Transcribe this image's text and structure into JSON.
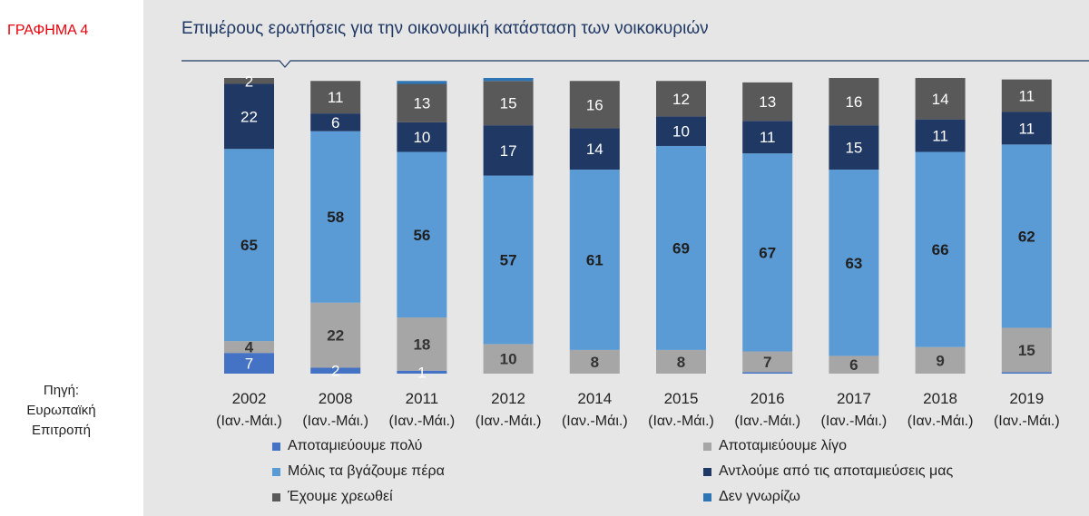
{
  "figure_label": "ΓΡΑΦΗΜΑ 4",
  "source_note": [
    "Πηγή:",
    "Ευρωπαϊκή",
    "Επιτροπή"
  ],
  "chart_data": {
    "type": "bar",
    "stacked": true,
    "title": "Επιμέρους ερωτήσεις για την οικονομική κατάσταση των νοικοκυριών",
    "categories": [
      "2002",
      "2008",
      "2011",
      "2012",
      "2014",
      "2015",
      "2016",
      "2017",
      "2018",
      "2019"
    ],
    "category_sublabels": [
      "(Ιαν.-Μάι.)",
      "(Ιαν.-Μάι.)",
      "(Ιαν.-Μάι.)",
      "(Ιαν.-Μάι.)",
      "(Ιαν.-Μάι.)",
      "(Ιαν.-Μάι.)",
      "(Ιαν.-Μάι.)",
      "(Ιαν.-Μάι.)",
      "(Ιαν.-Μάι.)",
      "(Ιαν.-Μάι.)"
    ],
    "ylim": [
      0,
      100
    ],
    "legend_position": "bottom",
    "series": [
      {
        "name": "Αποταμιεύουμε πολύ",
        "color": "#4472c4",
        "label_color": "#ffffff",
        "values": [
          7,
          2,
          1,
          0,
          0,
          0,
          0.5,
          0,
          0,
          0.5
        ],
        "labels": [
          "7",
          "2",
          "1",
          "",
          "",
          "",
          "",
          "",
          "",
          ""
        ]
      },
      {
        "name": "Αποταμιεύουμε λίγο",
        "color": "#a6a6a6",
        "label_color": "#333333",
        "values": [
          4,
          22,
          18,
          10,
          8,
          8,
          7,
          6,
          9,
          15
        ],
        "labels": [
          "4",
          "22",
          "18",
          "10",
          "8",
          "8",
          "7",
          "6",
          "9",
          "15"
        ]
      },
      {
        "name": "Μόλις τα βγάζουμε πέρα",
        "color": "#5b9bd5",
        "label_color": "#1f1f1f",
        "values": [
          65,
          58,
          56,
          57,
          61,
          69,
          67,
          63,
          66,
          62
        ],
        "labels": [
          "65",
          "58",
          "56",
          "57",
          "61",
          "69",
          "67",
          "63",
          "66",
          "62"
        ]
      },
      {
        "name": "Αντλούμε  από τις αποταμιεύσεις μας",
        "color": "#203864",
        "label_color": "#ffffff",
        "values": [
          22,
          6,
          10,
          17,
          14,
          10,
          11,
          15,
          11,
          11
        ],
        "labels": [
          "22",
          "6",
          "10",
          "17",
          "14",
          "10",
          "11",
          "15",
          "11",
          "11"
        ]
      },
      {
        "name": "Έχουμε χρεωθεί",
        "color": "#595959",
        "label_color": "#ffffff",
        "values": [
          2,
          11,
          13,
          15,
          16,
          12,
          13,
          16,
          14,
          11
        ],
        "labels": [
          "2",
          "11",
          "13",
          "15",
          "16",
          "12",
          "13",
          "16",
          "14",
          "11"
        ]
      },
      {
        "name": "Δεν  γνωρίζω",
        "color": "#2e75b6",
        "label_color": "#ffffff",
        "values": [
          0,
          0,
          1,
          1,
          0,
          0,
          0,
          0,
          0,
          0
        ],
        "labels": [
          "",
          "",
          "",
          "",
          "",
          "",
          "",
          "",
          "",
          ""
        ]
      }
    ]
  }
}
